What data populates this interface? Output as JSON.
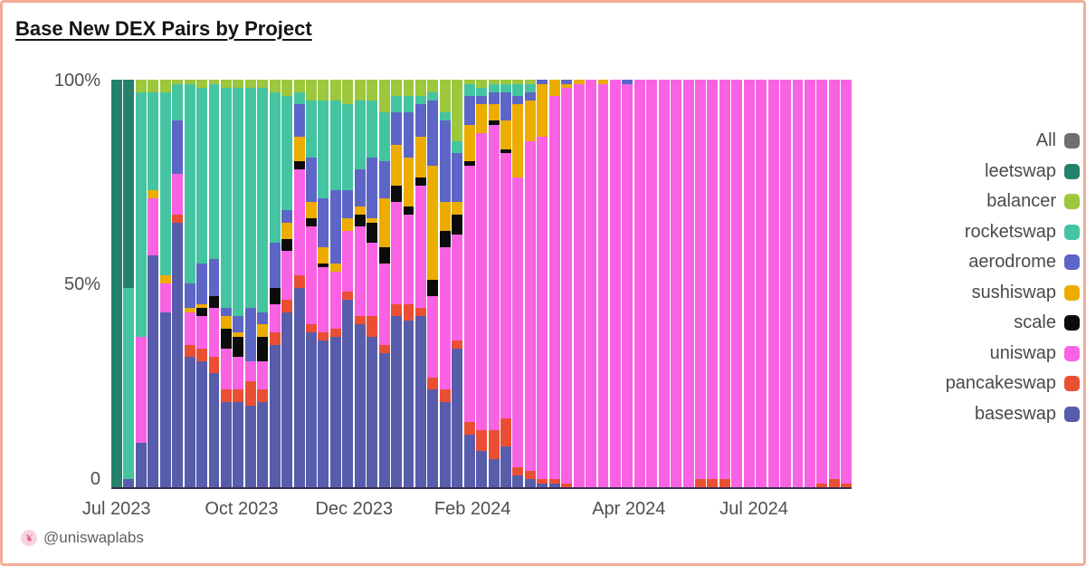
{
  "page": {
    "border_color": "#f2ad96",
    "background": "#ffffff"
  },
  "header": {
    "title": "Base New DEX Pairs by Project"
  },
  "footer": {
    "handle": "@uniswaplabs",
    "icon": "uniswap-logo-icon"
  },
  "legend": {
    "position": "right",
    "items": [
      {
        "label": "All",
        "color": "#6f6f6f"
      },
      {
        "label": "leetswap",
        "color": "#23816c"
      },
      {
        "label": "balancer",
        "color": "#9dc73c"
      },
      {
        "label": "rocketswap",
        "color": "#45c4a1"
      },
      {
        "label": "aerodrome",
        "color": "#5d66c6"
      },
      {
        "label": "sushiswap",
        "color": "#ecac00"
      },
      {
        "label": "scale",
        "color": "#0b0b0b"
      },
      {
        "label": "uniswap",
        "color": "#f962e3"
      },
      {
        "label": "pancakeswap",
        "color": "#eb4f33"
      },
      {
        "label": "baseswap",
        "color": "#575cab"
      }
    ]
  },
  "chart_data": {
    "type": "bar",
    "stacked": true,
    "units": "percent_share",
    "title": "Base New DEX Pairs by Project",
    "xlabel": "",
    "ylabel": "",
    "ylim": [
      0,
      100
    ],
    "grid": false,
    "bar_count": 61,
    "y_ticks": [
      {
        "label": "100%",
        "value": 100
      },
      {
        "label": "50%",
        "value": 50
      },
      {
        "label": "0",
        "value": 0
      }
    ],
    "x_ticks": [
      {
        "label": "Jul 2023",
        "pos": 0.007
      },
      {
        "label": "Oct 2023",
        "pos": 0.176
      },
      {
        "label": "Dec 2023",
        "pos": 0.328
      },
      {
        "label": "Feb 2024",
        "pos": 0.488
      },
      {
        "label": "Apr 2024",
        "pos": 0.699
      },
      {
        "label": "Jul 2024",
        "pos": 0.868
      }
    ],
    "stack_order_bottom_to_top": [
      "baseswap",
      "pancakeswap",
      "uniswap",
      "scale",
      "sushiswap",
      "aerodrome",
      "rocketswap",
      "balancer",
      "leetswap"
    ],
    "series": [
      {
        "name": "baseswap",
        "color": "#575cab",
        "values": [
          0,
          2,
          11,
          57,
          43,
          65,
          32,
          31,
          28,
          21,
          21,
          20,
          21,
          35,
          43,
          49,
          38,
          36,
          37,
          46,
          40,
          37,
          33,
          42,
          41,
          42,
          24,
          21,
          34,
          13,
          9,
          7,
          10,
          3,
          2,
          1,
          1,
          0,
          0,
          0,
          0,
          0,
          0,
          0,
          0,
          0,
          0,
          0,
          0,
          0,
          0,
          0,
          0,
          0,
          0,
          0,
          0,
          0,
          0,
          0,
          0
        ]
      },
      {
        "name": "pancakeswap",
        "color": "#eb4f33",
        "values": [
          0,
          0,
          0,
          0,
          0,
          2,
          3,
          3,
          4,
          3,
          3,
          6,
          3,
          3,
          3,
          3,
          2,
          2,
          2,
          2,
          2,
          5,
          2,
          3,
          4,
          2,
          3,
          3,
          2,
          3,
          5,
          7,
          7,
          2,
          2,
          1,
          1,
          1,
          0,
          0,
          0,
          0,
          0,
          0,
          0,
          0,
          0,
          0,
          2,
          2,
          2,
          0,
          0,
          0,
          0,
          0,
          0,
          0,
          1,
          2,
          1
        ]
      },
      {
        "name": "uniswap",
        "color": "#f962e3",
        "values": [
          0,
          0,
          26,
          14,
          7,
          10,
          8,
          8,
          12,
          10,
          8,
          5,
          7,
          7,
          12,
          26,
          24,
          16,
          14,
          15,
          22,
          18,
          20,
          25,
          22,
          30,
          20,
          35,
          26,
          63,
          73,
          75,
          65,
          71,
          81,
          84,
          94,
          97,
          99,
          100,
          99,
          100,
          99,
          100,
          100,
          100,
          100,
          100,
          98,
          98,
          98,
          100,
          100,
          100,
          100,
          100,
          100,
          100,
          99,
          98,
          99
        ]
      },
      {
        "name": "scale",
        "color": "#0b0b0b",
        "values": [
          0,
          0,
          0,
          0,
          0,
          0,
          0,
          2,
          3,
          5,
          5,
          0,
          6,
          4,
          3,
          2,
          2,
          1,
          0,
          0,
          3,
          5,
          4,
          4,
          2,
          2,
          4,
          4,
          5,
          1,
          0,
          1,
          1,
          0,
          0,
          0,
          0,
          0,
          0,
          0,
          0,
          0,
          0,
          0,
          0,
          0,
          0,
          0,
          0,
          0,
          0,
          0,
          0,
          0,
          0,
          0,
          0,
          0,
          0,
          0,
          0
        ]
      },
      {
        "name": "sushiswap",
        "color": "#ecac00",
        "values": [
          0,
          0,
          0,
          2,
          2,
          0,
          1,
          1,
          0,
          3,
          1,
          0,
          3,
          0,
          4,
          6,
          4,
          4,
          2,
          3,
          2,
          1,
          12,
          10,
          12,
          10,
          28,
          7,
          3,
          9,
          7,
          4,
          7,
          18,
          10,
          13,
          4,
          1,
          1,
          0,
          1,
          0,
          0,
          0,
          0,
          0,
          0,
          0,
          0,
          0,
          0,
          0,
          0,
          0,
          0,
          0,
          0,
          0,
          0,
          0,
          0
        ]
      },
      {
        "name": "aerodrome",
        "color": "#5d66c6",
        "values": [
          0,
          0,
          0,
          0,
          0,
          13,
          6,
          10,
          9,
          2,
          4,
          13,
          3,
          11,
          3,
          8,
          11,
          12,
          18,
          7,
          9,
          15,
          9,
          8,
          11,
          8,
          16,
          20,
          12,
          7,
          2,
          3,
          7,
          2,
          2,
          1,
          0,
          1,
          0,
          0,
          0,
          0,
          1,
          0,
          0,
          0,
          0,
          0,
          0,
          0,
          0,
          0,
          0,
          0,
          0,
          0,
          0,
          0,
          0,
          0,
          0
        ]
      },
      {
        "name": "rocketswap",
        "color": "#45c4a1",
        "values": [
          0,
          47,
          60,
          24,
          45,
          9,
          49,
          43,
          43,
          54,
          56,
          54,
          55,
          37,
          28,
          3,
          14,
          24,
          22,
          21,
          17,
          14,
          12,
          4,
          4,
          2,
          2,
          2,
          3,
          3,
          2,
          2,
          2,
          3,
          2,
          0,
          0,
          0,
          0,
          0,
          0,
          0,
          0,
          0,
          0,
          0,
          0,
          0,
          0,
          0,
          0,
          0,
          0,
          0,
          0,
          0,
          0,
          0,
          0,
          0,
          0
        ]
      },
      {
        "name": "balancer",
        "color": "#9dc73c",
        "values": [
          0,
          0,
          3,
          3,
          3,
          1,
          1,
          2,
          1,
          2,
          2,
          2,
          2,
          3,
          4,
          3,
          5,
          5,
          5,
          6,
          5,
          5,
          8,
          4,
          4,
          4,
          3,
          8,
          15,
          1,
          2,
          1,
          1,
          1,
          1,
          0,
          0,
          0,
          0,
          0,
          0,
          0,
          0,
          0,
          0,
          0,
          0,
          0,
          0,
          0,
          0,
          0,
          0,
          0,
          0,
          0,
          0,
          0,
          0,
          0,
          0
        ]
      },
      {
        "name": "leetswap",
        "color": "#23816c",
        "values": [
          100,
          51,
          0,
          0,
          0,
          0,
          0,
          0,
          0,
          0,
          0,
          0,
          0,
          0,
          0,
          0,
          0,
          0,
          0,
          0,
          0,
          0,
          0,
          0,
          0,
          0,
          0,
          0,
          0,
          0,
          0,
          0,
          0,
          0,
          0,
          0,
          0,
          0,
          0,
          0,
          0,
          0,
          0,
          0,
          0,
          0,
          0,
          0,
          0,
          0,
          0,
          0,
          0,
          0,
          0,
          0,
          0,
          0,
          0,
          0,
          0
        ]
      }
    ]
  }
}
